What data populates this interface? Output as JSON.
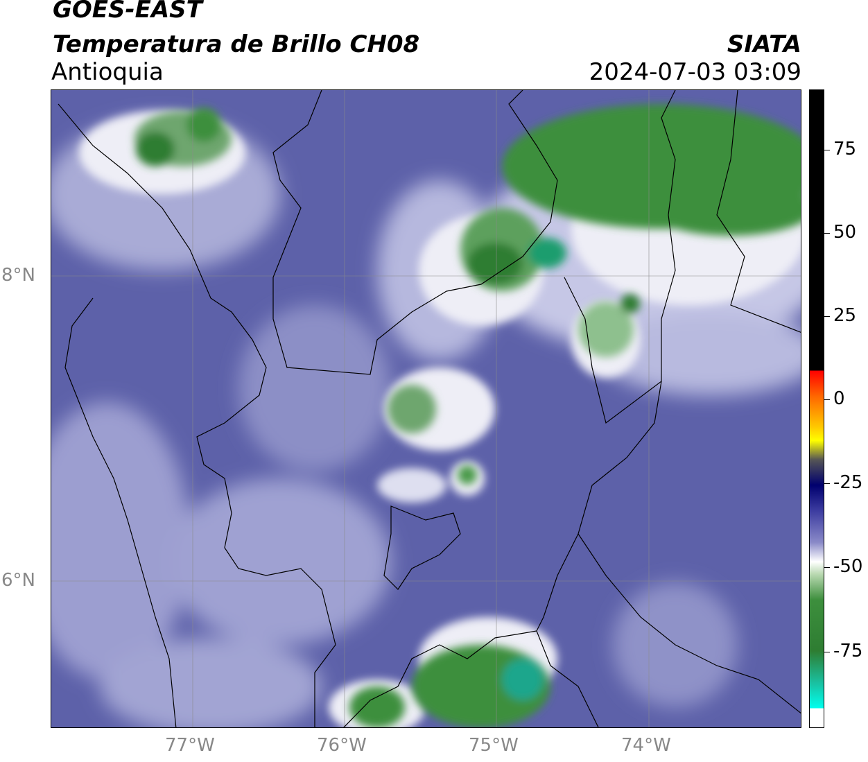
{
  "header": {
    "satellite": "GOES-EAST",
    "product": "Temperatura de Brillo CH08",
    "region": "Antioquia",
    "organization": "SIATA",
    "datetime": "2024-07-03 03:09"
  },
  "axes": {
    "lat_labels": [
      "8°N",
      "6°N"
    ],
    "lon_labels": [
      "77°W",
      "76°W",
      "75°W",
      "74°W"
    ]
  },
  "colorbar": {
    "ticks": [
      "75",
      "50",
      "25",
      "0",
      "-25",
      "-50",
      "-75"
    ]
  },
  "colors": {
    "background_purple": "#5b5fa8",
    "cloud_white": "#e8e8f2",
    "cold_green": "#2e7d32"
  }
}
